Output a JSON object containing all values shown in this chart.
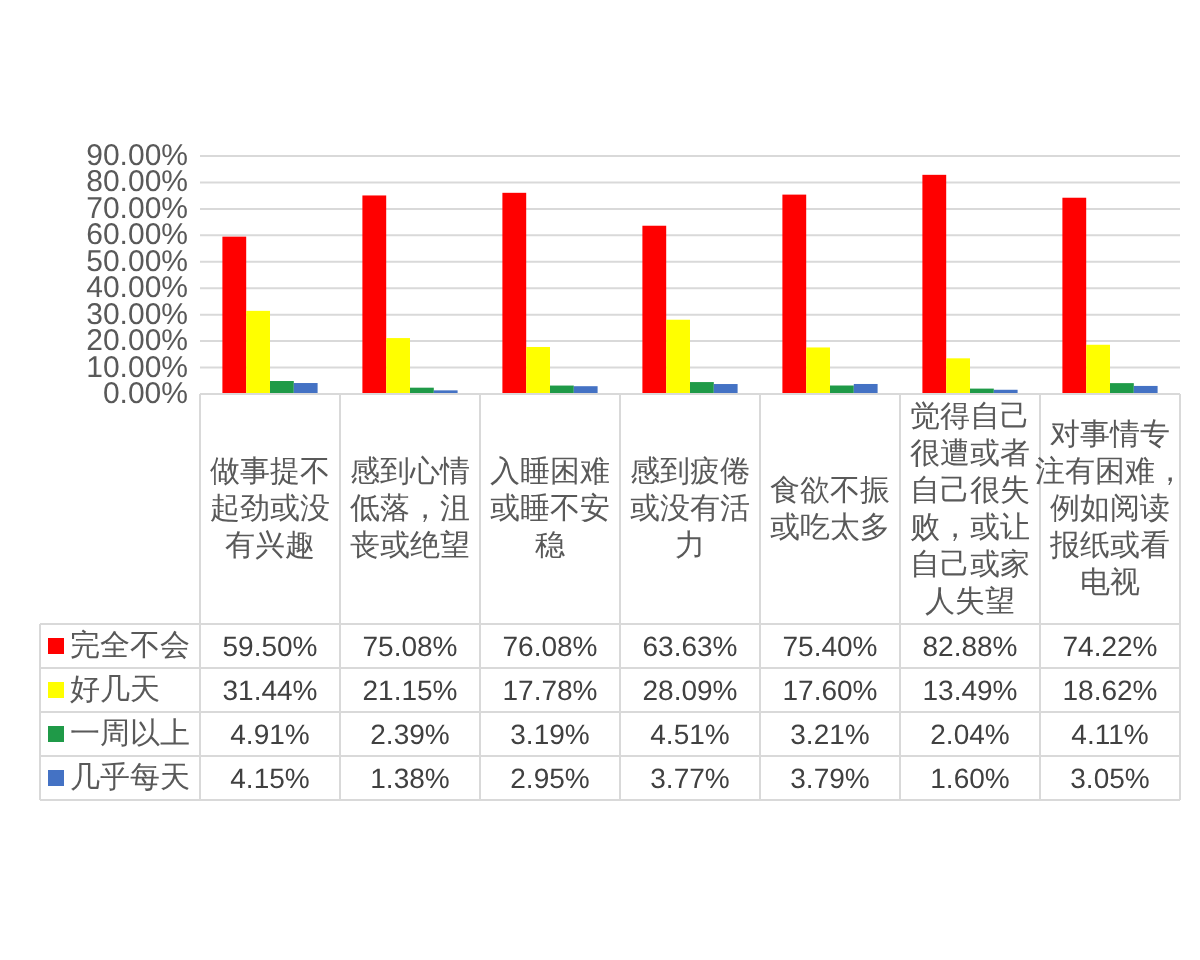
{
  "chart_data": {
    "type": "bar",
    "categories": [
      "做事提不起劲或没有兴趣",
      "感到心情低落，沮丧或绝望",
      "入睡困难或睡不安稳",
      "感到疲倦或没有活力",
      "食欲不振或吃太多",
      "觉得自己很遭或者自己很失败，或让自己或家人失望",
      "对事情专注有困难，例如阅读报纸或看电视"
    ],
    "series": [
      {
        "name": "完全不会",
        "color": "#ff0000",
        "values": [
          59.5,
          75.08,
          76.08,
          63.63,
          75.4,
          82.88,
          74.22
        ],
        "value_labels": [
          "59.50%",
          "75.08%",
          "76.08%",
          "63.63%",
          "75.40%",
          "82.88%",
          "74.22%"
        ]
      },
      {
        "name": "好几天",
        "color": "#ffff00",
        "values": [
          31.44,
          21.15,
          17.78,
          28.09,
          17.6,
          13.49,
          18.62
        ],
        "value_labels": [
          "31.44%",
          "21.15%",
          "17.78%",
          "28.09%",
          "17.60%",
          "13.49%",
          "18.62%"
        ]
      },
      {
        "name": "一周以上",
        "color": "#1f9a48",
        "values": [
          4.91,
          2.39,
          3.19,
          4.51,
          3.21,
          2.04,
          4.11
        ],
        "value_labels": [
          "4.91%",
          "2.39%",
          "3.19%",
          "4.51%",
          "3.21%",
          "2.04%",
          "4.11%"
        ]
      },
      {
        "name": "几乎每天",
        "color": "#4472c4",
        "values": [
          4.15,
          1.38,
          2.95,
          3.77,
          3.79,
          1.6,
          3.05
        ],
        "value_labels": [
          "4.15%",
          "1.38%",
          "2.95%",
          "3.77%",
          "3.79%",
          "1.60%",
          "3.05%"
        ]
      }
    ],
    "ylim": [
      0,
      90
    ],
    "yticks": [
      {
        "value": 0,
        "label": "0.00%"
      },
      {
        "value": 10,
        "label": "10.00%"
      },
      {
        "value": 20,
        "label": "20.00%"
      },
      {
        "value": 30,
        "label": "30.00%"
      },
      {
        "value": 40,
        "label": "40.00%"
      },
      {
        "value": 50,
        "label": "50.00%"
      },
      {
        "value": 60,
        "label": "60.00%"
      },
      {
        "value": 70,
        "label": "70.00%"
      },
      {
        "value": 80,
        "label": "80.00%"
      },
      {
        "value": 90,
        "label": "90.00%"
      }
    ],
    "grid": "y",
    "legend": "bottom"
  }
}
